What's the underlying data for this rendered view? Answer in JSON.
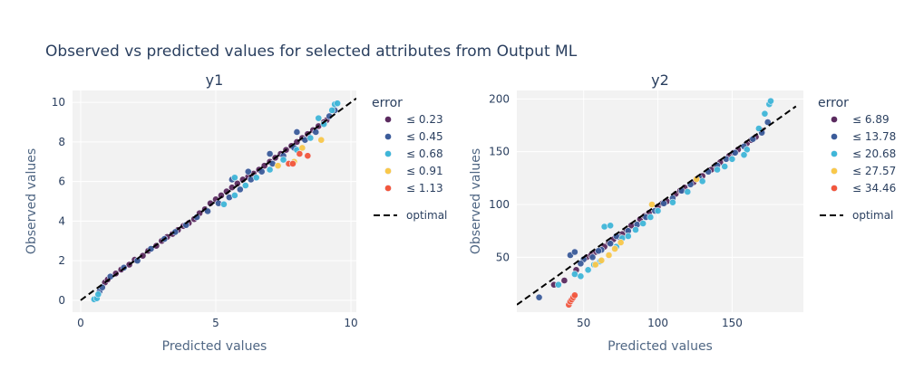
{
  "figure": {
    "title": "Observed vs predicted values for selected attributes from Output ML"
  },
  "colors": {
    "plot_bg": "#f2f2f2",
    "grid": "#ffffff",
    "optimal_line": "#000000",
    "marker_edge": "#f0f0f8",
    "bins": [
      "#5b2a5e",
      "#3b5c9a",
      "#3fb6d8",
      "#f9c84a",
      "#f2573d"
    ]
  },
  "chart_data": [
    {
      "type": "scatter",
      "title": "y1",
      "xlabel": "Predicted values",
      "ylabel": "Observed values",
      "xlim": [
        -0.3,
        10.2
      ],
      "ylim": [
        -0.6,
        10.6
      ],
      "xticks": [
        0,
        5,
        10
      ],
      "yticks": [
        0,
        2,
        4,
        6,
        8,
        10
      ],
      "grid": true,
      "legend": {
        "title": "error",
        "placement": "right",
        "entries": [
          "≤ 0.23",
          "≤ 0.45",
          "≤ 0.68",
          "≤ 0.91",
          "≤ 1.13"
        ],
        "line_entry": "optimal"
      },
      "optimal_line": {
        "from": [
          0,
          0
        ],
        "to": [
          10.2,
          10.2
        ]
      },
      "series": [
        {
          "bin": 0,
          "points": [
            [
              0.9,
              0.9
            ],
            [
              1.3,
              1.35
            ],
            [
              1.8,
              1.8
            ],
            [
              2.3,
              2.25
            ],
            [
              2.8,
              2.75
            ],
            [
              3.2,
              3.2
            ],
            [
              3.6,
              3.55
            ],
            [
              4.0,
              3.9
            ],
            [
              4.4,
              4.4
            ],
            [
              4.8,
              4.9
            ],
            [
              5.2,
              5.3
            ],
            [
              5.6,
              5.7
            ],
            [
              6.0,
              6.1
            ],
            [
              6.4,
              6.4
            ],
            [
              6.8,
              6.8
            ],
            [
              7.2,
              7.2
            ],
            [
              7.6,
              7.6
            ],
            [
              8.0,
              8.0
            ],
            [
              8.4,
              8.4
            ],
            [
              8.8,
              8.8
            ],
            [
              9.1,
              9.1
            ],
            [
              1.0,
              1.05
            ],
            [
              1.5,
              1.55
            ],
            [
              2.0,
              2.05
            ],
            [
              2.5,
              2.5
            ],
            [
              3.0,
              3.0
            ],
            [
              3.4,
              3.35
            ],
            [
              3.8,
              3.75
            ],
            [
              4.2,
              4.1
            ],
            [
              4.6,
              4.6
            ],
            [
              5.0,
              5.1
            ],
            [
              5.4,
              5.5
            ],
            [
              5.8,
              5.9
            ],
            [
              6.2,
              6.25
            ],
            [
              6.6,
              6.6
            ],
            [
              7.0,
              7.0
            ],
            [
              7.4,
              7.4
            ],
            [
              7.8,
              7.8
            ],
            [
              8.2,
              8.2
            ],
            [
              8.6,
              8.6
            ],
            [
              9.0,
              9.0
            ]
          ]
        },
        {
          "bin": 1,
          "points": [
            [
              0.7,
              0.45
            ],
            [
              0.8,
              0.65
            ],
            [
              1.1,
              1.2
            ],
            [
              1.6,
              1.65
            ],
            [
              2.1,
              2.0
            ],
            [
              2.6,
              2.6
            ],
            [
              3.1,
              3.1
            ],
            [
              3.5,
              3.45
            ],
            [
              3.9,
              3.8
            ],
            [
              4.3,
              4.2
            ],
            [
              4.7,
              4.5
            ],
            [
              5.1,
              4.9
            ],
            [
              5.5,
              5.2
            ],
            [
              5.9,
              5.6
            ],
            [
              6.3,
              6.1
            ],
            [
              6.7,
              6.5
            ],
            [
              7.1,
              6.9
            ],
            [
              7.5,
              7.3
            ],
            [
              7.9,
              7.7
            ],
            [
              8.3,
              8.1
            ],
            [
              8.7,
              8.5
            ],
            [
              9.2,
              9.3
            ],
            [
              9.4,
              9.6
            ],
            [
              5.6,
              6.1
            ],
            [
              6.2,
              6.5
            ],
            [
              7.0,
              7.4
            ],
            [
              8.0,
              8.5
            ]
          ]
        },
        {
          "bin": 2,
          "points": [
            [
              0.5,
              0.05
            ],
            [
              0.6,
              0.1
            ],
            [
              0.65,
              0.3
            ],
            [
              5.3,
              4.85
            ],
            [
              5.7,
              5.3
            ],
            [
              6.1,
              5.8
            ],
            [
              6.5,
              6.2
            ],
            [
              7.0,
              6.6
            ],
            [
              7.5,
              7.1
            ],
            [
              8.0,
              7.6
            ],
            [
              8.5,
              8.2
            ],
            [
              9.0,
              8.9
            ],
            [
              9.3,
              9.6
            ],
            [
              9.4,
              9.9
            ],
            [
              9.5,
              9.95
            ],
            [
              5.7,
              6.2
            ],
            [
              8.8,
              9.2
            ]
          ]
        },
        {
          "bin": 3,
          "points": [
            [
              7.3,
              6.8
            ],
            [
              7.9,
              7.0
            ],
            [
              8.9,
              8.1
            ],
            [
              8.2,
              7.7
            ]
          ]
        },
        {
          "bin": 4,
          "points": [
            [
              7.7,
              6.9
            ],
            [
              7.85,
              6.9
            ],
            [
              8.4,
              7.3
            ],
            [
              8.1,
              7.4
            ]
          ]
        }
      ]
    },
    {
      "type": "scatter",
      "title": "y2",
      "xlabel": "Predicted values",
      "ylabel": "Observed values",
      "xlim": [
        5,
        198
      ],
      "ylim": [
        -2,
        208
      ],
      "xticks": [
        50,
        100,
        150
      ],
      "yticks": [
        50,
        100,
        150,
        200
      ],
      "grid": true,
      "legend": {
        "title": "error",
        "placement": "right",
        "entries": [
          "≤ 6.89",
          "≤ 13.78",
          "≤ 20.68",
          "≤ 27.57",
          "≤ 34.46"
        ],
        "line_entry": "optimal"
      },
      "optimal_line": {
        "from": [
          5,
          5
        ],
        "to": [
          193,
          193
        ]
      },
      "series": [
        {
          "bin": 0,
          "points": [
            [
              30,
              24
            ],
            [
              37,
              28
            ],
            [
              45,
              38
            ],
            [
              52,
              50
            ],
            [
              58,
              55
            ],
            [
              64,
              60
            ],
            [
              70,
              67
            ],
            [
              76,
              72
            ],
            [
              82,
              80
            ],
            [
              88,
              86
            ],
            [
              94,
              92
            ],
            [
              100,
              98
            ],
            [
              106,
              103
            ],
            [
              112,
              110
            ],
            [
              118,
              116
            ],
            [
              124,
              121
            ],
            [
              130,
              127
            ],
            [
              136,
              133
            ],
            [
              142,
              140
            ],
            [
              148,
              146
            ],
            [
              154,
              152
            ],
            [
              160,
              158
            ],
            [
              166,
              164
            ],
            [
              170,
              170
            ],
            [
              55,
              52
            ],
            [
              67,
              64
            ],
            [
              79,
              76
            ],
            [
              91,
              89
            ],
            [
              103,
              101
            ],
            [
              115,
              113
            ],
            [
              127,
              125
            ],
            [
              139,
              137
            ],
            [
              151,
              149
            ],
            [
              163,
              161
            ]
          ]
        },
        {
          "bin": 1,
          "points": [
            [
              20,
              12
            ],
            [
              41,
              52
            ],
            [
              44,
              55
            ],
            [
              50,
              48
            ],
            [
              56,
              50
            ],
            [
              62,
              57
            ],
            [
              68,
              63
            ],
            [
              74,
              69
            ],
            [
              80,
              75
            ],
            [
              86,
              81
            ],
            [
              92,
              88
            ],
            [
              98,
              94
            ],
            [
              104,
              101
            ],
            [
              110,
              106
            ],
            [
              116,
              113
            ],
            [
              122,
              119
            ],
            [
              128,
              125
            ],
            [
              134,
              131
            ],
            [
              140,
              137
            ],
            [
              146,
              143
            ],
            [
              152,
              149
            ],
            [
              158,
              155
            ],
            [
              164,
              162
            ],
            [
              170,
              168
            ],
            [
              174,
              178
            ],
            [
              48,
              44
            ],
            [
              60,
              56
            ],
            [
              72,
              70
            ]
          ]
        },
        {
          "bin": 2,
          "points": [
            [
              33,
              24
            ],
            [
              44,
              34
            ],
            [
              48,
              32
            ],
            [
              53,
              38
            ],
            [
              57,
              43
            ],
            [
              61,
              46
            ],
            [
              64,
              79
            ],
            [
              68,
              80
            ],
            [
              72,
              60
            ],
            [
              76,
              68
            ],
            [
              80,
              70
            ],
            [
              85,
              76
            ],
            [
              90,
              82
            ],
            [
              95,
              88
            ],
            [
              100,
              94
            ],
            [
              110,
              102
            ],
            [
              120,
              112
            ],
            [
              130,
              122
            ],
            [
              140,
              133
            ],
            [
              150,
              143
            ],
            [
              160,
              152
            ],
            [
              168,
              172
            ],
            [
              172,
              186
            ],
            [
              175,
              195
            ],
            [
              176,
              198
            ],
            [
              158,
              147
            ],
            [
              145,
              136
            ]
          ]
        },
        {
          "bin": 3,
          "points": [
            [
              58,
              43
            ],
            [
              62,
              47
            ],
            [
              67,
              52
            ],
            [
              71,
              58
            ],
            [
              75,
              64
            ],
            [
              96,
              100
            ],
            [
              126,
              124
            ]
          ]
        },
        {
          "bin": 4,
          "points": [
            [
              40,
              5
            ],
            [
              41,
              8
            ],
            [
              42,
              10
            ],
            [
              43,
              12
            ],
            [
              44,
              14
            ]
          ]
        }
      ]
    }
  ]
}
